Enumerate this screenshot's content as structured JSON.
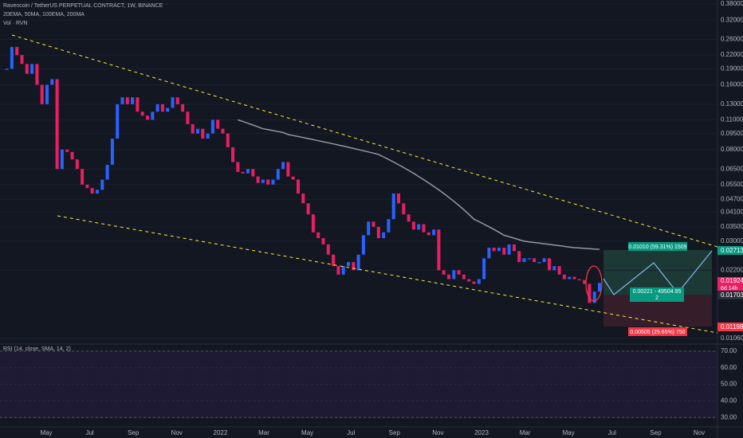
{
  "chart_data": {
    "type": "candlestick",
    "title": "Ravencoin / TetherUS PERPETUAL CONTRACT, 1W, BINANCE",
    "indicators": "20EMA, 50MA, 100EMA, 200MA",
    "volume_label": "Vol · RVN",
    "rsi_label": "RSI (14, close, SMA, 14, 2)",
    "log_scale": true,
    "up_color": "#2962ff",
    "down_color": "#e91e63",
    "ma_color": "#9598a1",
    "ylim": [
      0.0106,
      0.38
    ],
    "yticks": [
      {
        "value": 0.38,
        "label": "0.38000"
      },
      {
        "value": 0.32,
        "label": "0.32000"
      },
      {
        "value": 0.26,
        "label": "0.26000"
      },
      {
        "value": 0.22,
        "label": "0.22000"
      },
      {
        "value": 0.19,
        "label": "0.19000"
      },
      {
        "value": 0.16,
        "label": "0.16000"
      },
      {
        "value": 0.13,
        "label": "0.13000"
      },
      {
        "value": 0.11,
        "label": "0.11000"
      },
      {
        "value": 0.095,
        "label": "0.09500"
      },
      {
        "value": 0.08,
        "label": "0.08000"
      },
      {
        "value": 0.065,
        "label": "0.06500"
      },
      {
        "value": 0.055,
        "label": "0.05500"
      },
      {
        "value": 0.047,
        "label": "0.04700"
      },
      {
        "value": 0.041,
        "label": "0.04100"
      },
      {
        "value": 0.035,
        "label": "0.03500"
      },
      {
        "value": 0.03,
        "label": "0.03000"
      },
      {
        "value": 0.022,
        "label": "0.02200"
      },
      {
        "value": 0.0106,
        "label": "0.01060"
      }
    ],
    "x_labels": [
      "May",
      "Jul",
      "Sep",
      "Nov",
      "2022",
      "Mar",
      "May",
      "Jul",
      "Sep",
      "Nov",
      "2023",
      "Mar",
      "May",
      "Jul",
      "Sep",
      "Nov"
    ],
    "close": [
      0.19,
      0.24,
      0.22,
      0.2,
      0.18,
      0.2,
      0.16,
      0.13,
      0.16,
      0.17,
      0.065,
      0.08,
      0.078,
      0.072,
      0.065,
      0.055,
      0.053,
      0.05,
      0.052,
      0.058,
      0.068,
      0.09,
      0.13,
      0.14,
      0.13,
      0.14,
      0.12,
      0.115,
      0.11,
      0.12,
      0.13,
      0.12,
      0.125,
      0.14,
      0.13,
      0.12,
      0.105,
      0.095,
      0.1,
      0.09,
      0.095,
      0.11,
      0.1,
      0.095,
      0.082,
      0.07,
      0.063,
      0.062,
      0.065,
      0.06,
      0.056,
      0.058,
      0.055,
      0.058,
      0.065,
      0.07,
      0.06,
      0.058,
      0.05,
      0.045,
      0.04,
      0.033,
      0.031,
      0.029,
      0.026,
      0.023,
      0.021,
      0.023,
      0.024,
      0.022,
      0.026,
      0.032,
      0.037,
      0.035,
      0.031,
      0.033,
      0.038,
      0.05,
      0.045,
      0.04,
      0.037,
      0.034,
      0.036,
      0.033,
      0.032,
      0.034,
      0.022,
      0.021,
      0.02,
      0.022,
      0.021,
      0.02,
      0.0195,
      0.019,
      0.02,
      0.025,
      0.028,
      0.027,
      0.028,
      0.026,
      0.029,
      0.027,
      0.024,
      0.025,
      0.025,
      0.024,
      0.024,
      0.025,
      0.022,
      0.023,
      0.021,
      0.02,
      0.0205,
      0.02,
      0.0198,
      0.019,
      0.0155,
      0.0175,
      0.0192
    ],
    "ma": [
      null,
      null,
      null,
      null,
      null,
      null,
      null,
      null,
      null,
      null,
      null,
      null,
      null,
      null,
      null,
      null,
      null,
      null,
      null,
      null,
      null,
      null,
      null,
      null,
      null,
      null,
      null,
      null,
      null,
      null,
      null,
      null,
      null,
      null,
      null,
      null,
      null,
      null,
      null,
      null,
      null,
      null,
      null,
      null,
      null,
      null,
      0.11,
      0.108,
      0.106,
      0.104,
      0.102,
      0.1,
      0.099,
      0.098,
      0.097,
      0.096,
      0.094,
      0.093,
      0.092,
      0.091,
      0.09,
      0.089,
      0.088,
      0.087,
      0.086,
      0.085,
      0.084,
      0.083,
      0.082,
      0.081,
      0.08,
      0.079,
      0.078,
      0.077,
      0.076,
      0.074,
      0.072,
      0.07,
      0.068,
      0.066,
      0.064,
      0.062,
      0.06,
      0.058,
      0.056,
      0.054,
      0.052,
      0.05,
      0.048,
      0.046,
      0.044,
      0.042,
      0.04,
      0.038,
      0.037,
      0.036,
      0.035,
      0.034,
      0.033,
      0.032,
      0.0315,
      0.031,
      0.0305,
      0.03,
      0.0298,
      0.0296,
      0.0294,
      0.0292,
      0.029,
      0.0288,
      0.0286,
      0.0284,
      0.0282,
      0.028,
      0.0279,
      0.0278,
      0.0277,
      0.0276,
      0.0275
    ],
    "rsi_ticks": [
      "70.00",
      "60.00",
      "50.00",
      "40.00",
      "30.00"
    ],
    "target_label": "0.01010 (59.31%) 1509",
    "center_label": "0.00221 - 49504.95",
    "center_sub": "2",
    "stop_label": "0.00505 (29.65%) 750",
    "tag_target": "0.02713",
    "tag_last": "0.01924",
    "tag_countdown": "6d 14h",
    "tag_entry": "0.01703",
    "tag_stop": "0.01198"
  }
}
